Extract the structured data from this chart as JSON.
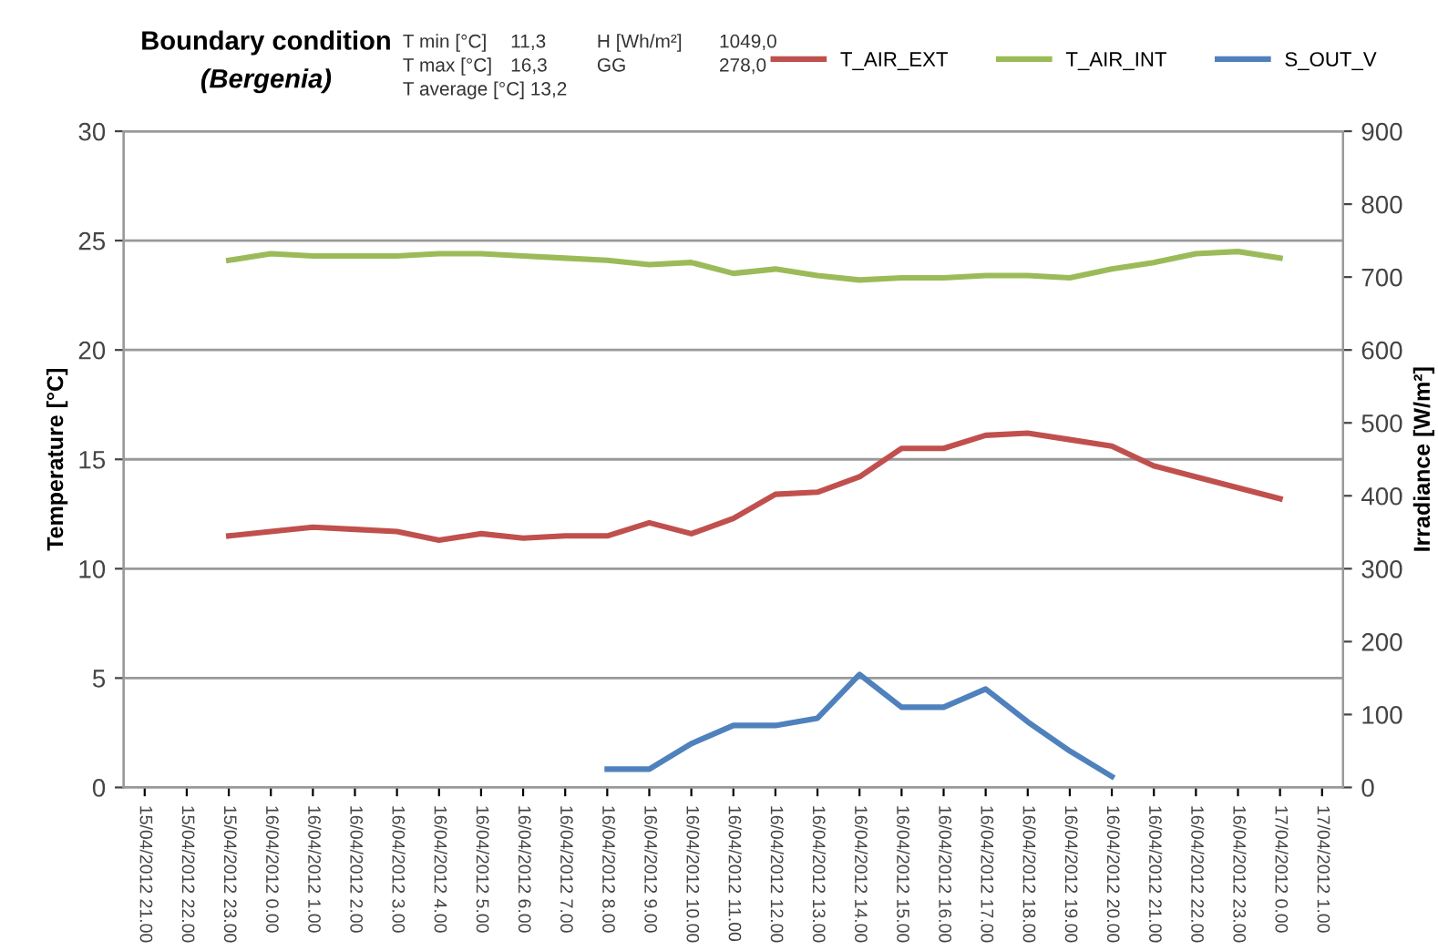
{
  "chart_data": {
    "type": "line",
    "title": "Boundary condition",
    "subtitle": "(Bergenia)",
    "annotations": [
      "T min [°C]",
      "11,3",
      "H [Wh/m²]",
      "1049,0",
      "T max [°C]",
      "16,3",
      "GG",
      "278,0",
      "T average [°C] 13,2"
    ],
    "ylabel": "Temperature [°C]",
    "y2label": "Irradiance [W/m²]",
    "categories": [
      "15/04/2012 21.00",
      "15/04/2012 22.00",
      "15/04/2012 23.00",
      "16/04/2012 0.00",
      "16/04/2012 1.00",
      "16/04/2012 2.00",
      "16/04/2012 3.00",
      "16/04/2012 4.00",
      "16/04/2012 5.00",
      "16/04/2012 6.00",
      "16/04/2012 7.00",
      "16/04/2012 8.00",
      "16/04/2012 9.00",
      "16/04/2012 10.00",
      "16/04/2012 11.00",
      "16/04/2012 12.00",
      "16/04/2012 13.00",
      "16/04/2012 14.00",
      "16/04/2012 15.00",
      "16/04/2012 16.00",
      "16/04/2012 17.00",
      "16/04/2012 18.00",
      "16/04/2012 19.00",
      "16/04/2012 20.00",
      "16/04/2012 21.00",
      "16/04/2012 22.00",
      "16/04/2012 23.00",
      "17/04/2012 0.00",
      "17/04/2012 1.00"
    ],
    "series": [
      {
        "name": "T_AIR_EXT",
        "color": "#c0504d",
        "values": [
          null,
          null,
          11.5,
          11.7,
          11.9,
          11.8,
          11.7,
          11.3,
          11.6,
          11.4,
          11.5,
          11.5,
          12.1,
          11.6,
          12.3,
          13.4,
          13.5,
          14.2,
          15.5,
          15.5,
          16.1,
          16.2,
          15.9,
          15.6,
          14.7,
          14.2,
          13.7,
          13.2,
          null
        ]
      },
      {
        "name": "T_AIR_INT",
        "color": "#9bbb59",
        "values": [
          null,
          null,
          24.1,
          24.4,
          24.3,
          24.3,
          24.3,
          24.4,
          24.4,
          24.3,
          24.2,
          24.1,
          23.9,
          24.0,
          23.5,
          23.7,
          23.4,
          23.2,
          23.3,
          23.3,
          23.4,
          23.4,
          23.3,
          23.7,
          24.0,
          24.4,
          24.5,
          24.2,
          null
        ]
      },
      {
        "name": "S_OUT_V",
        "color": "#4f81bd",
        "axis": "y2",
        "values": [
          null,
          null,
          null,
          null,
          null,
          null,
          null,
          null,
          null,
          null,
          null,
          25,
          25,
          60,
          85,
          85,
          95,
          155,
          110,
          110,
          135,
          90,
          50,
          15,
          null,
          null,
          null,
          null,
          null
        ]
      }
    ],
    "ylim": [
      0,
      30
    ],
    "yticks": [
      0,
      5,
      10,
      15,
      20,
      25,
      30
    ],
    "y2lim": [
      0,
      900
    ],
    "y2ticks": [
      0,
      100,
      200,
      300,
      400,
      500,
      600,
      700,
      800,
      900
    ],
    "grid": "y",
    "legend": "top right",
    "marker": "none",
    "line_style": "solid"
  }
}
